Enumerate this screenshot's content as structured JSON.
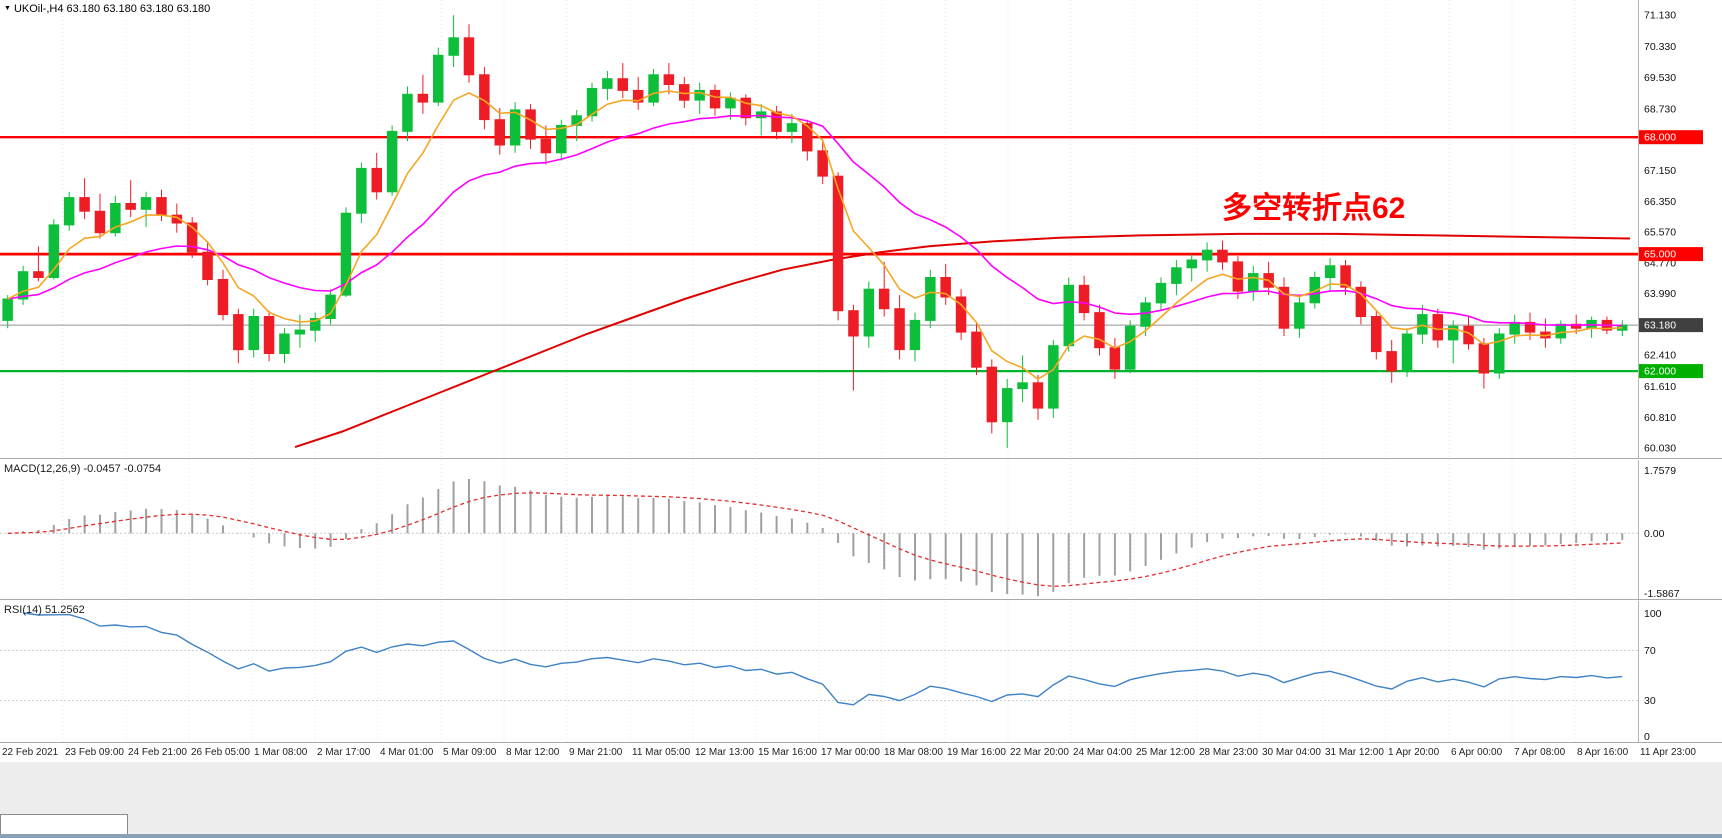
{
  "header": {
    "triangle": "▼",
    "title": "UKOil-,H4 63.180 63.180 63.180 63.180"
  },
  "annotation": {
    "text": "多空转折点62",
    "color": "#ff0000"
  },
  "colors": {
    "up": "#0cbe3a",
    "down": "#ee1c25",
    "ma_fast": "#f5a623",
    "ma_mid": "#ff00ff",
    "ma_slow": "#e00000",
    "macd_bar": "#a0a0a0",
    "macd_signal": "#e03030",
    "rsi_line": "#3e83c6",
    "grid": "#e8e8e8",
    "axis_border": "#b5b5b5",
    "current_line": "#909090"
  },
  "price_axis": {
    "labels": [
      {
        "value": "71.130",
        "price": 71.13
      },
      {
        "value": "70.330",
        "price": 70.33
      },
      {
        "value": "69.530",
        "price": 69.53
      },
      {
        "value": "68.730",
        "price": 68.73
      },
      {
        "value": "67.150",
        "price": 67.15
      },
      {
        "value": "66.350",
        "price": 66.35
      },
      {
        "value": "65.570",
        "price": 65.57
      },
      {
        "value": "64.770",
        "price": 64.77
      },
      {
        "value": "63.990",
        "price": 63.99
      },
      {
        "value": "62.410",
        "price": 62.41
      },
      {
        "value": "61.610",
        "price": 61.61
      },
      {
        "value": "60.810",
        "price": 60.81
      },
      {
        "value": "60.030",
        "price": 60.03
      }
    ],
    "badges": [
      {
        "value": "68.000",
        "price": 68.0,
        "bg": "#ff0000"
      },
      {
        "value": "65.000",
        "price": 65.0,
        "bg": "#ff0000"
      },
      {
        "value": "63.180",
        "price": 63.18,
        "bg": "#404040"
      },
      {
        "value": "62.000",
        "price": 62.0,
        "bg": "#00b000"
      }
    ]
  },
  "hlines": [
    {
      "name": "resistance-68",
      "price": 68.0,
      "color": "#ff0000",
      "width": 2.4
    },
    {
      "name": "pivot-65",
      "price": 65.0,
      "color": "#ff0000",
      "width": 2.8
    },
    {
      "name": "support-62",
      "price": 62.0,
      "color": "#00b52d",
      "width": 2.2
    },
    {
      "name": "current-price",
      "price": 63.18,
      "color": "#909090",
      "width": 1
    }
  ],
  "time_axis": [
    "22 Feb 2021",
    "23 Feb 09:00",
    "24 Feb 21:00",
    "26 Feb 05:00",
    "1 Mar 08:00",
    "2 Mar 17:00",
    "4 Mar 01:00",
    "5 Mar 09:00",
    "8 Mar 12:00",
    "9 Mar 21:00",
    "11 Mar 05:00",
    "12 Mar 13:00",
    "15 Mar 16:00",
    "17 Mar 00:00",
    "18 Mar 08:00",
    "19 Mar 16:00",
    "22 Mar 20:00",
    "24 Mar 04:00",
    "25 Mar 12:00",
    "28 Mar 23:00",
    "30 Mar 04:00",
    "31 Mar 12:00",
    "1 Apr 20:00",
    "6 Apr 00:00",
    "7 Apr 08:00",
    "8 Apr 16:00",
    "11 Apr 23:00"
  ],
  "chart_data": {
    "type": "candlestick",
    "symbol": "UKOil-",
    "timeframe": "H4",
    "current_price": 63.18,
    "price_range": {
      "max": 71.52,
      "min": 59.77
    },
    "ma_fast_period": 6,
    "ma_mid_period": 20,
    "red_ma_path": [
      [
        0.181,
        60.05
      ],
      [
        0.21,
        60.45
      ],
      [
        0.24,
        60.95
      ],
      [
        0.27,
        61.45
      ],
      [
        0.3,
        61.95
      ],
      [
        0.33,
        62.45
      ],
      [
        0.36,
        62.95
      ],
      [
        0.39,
        63.4
      ],
      [
        0.42,
        63.85
      ],
      [
        0.45,
        64.25
      ],
      [
        0.48,
        64.6
      ],
      [
        0.51,
        64.85
      ],
      [
        0.54,
        65.05
      ],
      [
        0.57,
        65.2
      ],
      [
        0.61,
        65.33
      ],
      [
        0.65,
        65.42
      ],
      [
        0.7,
        65.48
      ],
      [
        0.76,
        65.52
      ],
      [
        0.82,
        65.52
      ],
      [
        0.88,
        65.48
      ],
      [
        0.94,
        65.44
      ],
      [
        1.0,
        65.4
      ]
    ],
    "ohlc": [
      [
        63.3,
        63.95,
        63.1,
        63.85
      ],
      [
        63.85,
        64.7,
        63.7,
        64.55
      ],
      [
        64.55,
        65.2,
        64.3,
        64.4
      ],
      [
        64.4,
        65.9,
        64.35,
        65.75
      ],
      [
        65.75,
        66.6,
        65.6,
        66.45
      ],
      [
        66.45,
        66.95,
        65.9,
        66.1
      ],
      [
        66.1,
        66.55,
        65.4,
        65.55
      ],
      [
        65.55,
        66.5,
        65.45,
        66.3
      ],
      [
        66.3,
        66.9,
        65.95,
        66.15
      ],
      [
        66.15,
        66.6,
        65.7,
        66.45
      ],
      [
        66.45,
        66.65,
        65.85,
        66.0
      ],
      [
        66.0,
        66.3,
        65.55,
        65.8
      ],
      [
        65.8,
        65.95,
        64.9,
        65.05
      ],
      [
        65.05,
        65.3,
        64.2,
        64.35
      ],
      [
        64.35,
        64.6,
        63.3,
        63.45
      ],
      [
        63.45,
        63.6,
        62.2,
        62.55
      ],
      [
        62.55,
        63.6,
        62.35,
        63.4
      ],
      [
        63.4,
        63.55,
        62.25,
        62.45
      ],
      [
        62.45,
        63.1,
        62.2,
        62.95
      ],
      [
        62.95,
        63.45,
        62.6,
        63.05
      ],
      [
        63.05,
        63.5,
        62.75,
        63.35
      ],
      [
        63.35,
        64.1,
        63.2,
        63.95
      ],
      [
        63.95,
        66.2,
        63.9,
        66.05
      ],
      [
        66.05,
        67.35,
        65.8,
        67.2
      ],
      [
        67.2,
        67.6,
        66.4,
        66.6
      ],
      [
        66.6,
        68.3,
        66.5,
        68.15
      ],
      [
        68.15,
        69.3,
        67.9,
        69.1
      ],
      [
        69.1,
        69.6,
        68.6,
        68.9
      ],
      [
        68.9,
        70.3,
        68.8,
        70.1
      ],
      [
        70.1,
        71.13,
        69.8,
        70.55
      ],
      [
        70.55,
        70.9,
        69.4,
        69.6
      ],
      [
        69.6,
        69.8,
        68.2,
        68.45
      ],
      [
        68.45,
        68.75,
        67.55,
        67.8
      ],
      [
        67.8,
        68.9,
        67.6,
        68.7
      ],
      [
        68.7,
        68.85,
        67.7,
        67.95
      ],
      [
        67.95,
        68.3,
        67.3,
        67.6
      ],
      [
        67.6,
        68.45,
        67.4,
        68.3
      ],
      [
        68.3,
        68.7,
        67.9,
        68.55
      ],
      [
        68.55,
        69.4,
        68.4,
        69.25
      ],
      [
        69.25,
        69.7,
        68.95,
        69.5
      ],
      [
        69.5,
        69.9,
        69.0,
        69.2
      ],
      [
        69.2,
        69.55,
        68.7,
        68.9
      ],
      [
        68.9,
        69.75,
        68.8,
        69.6
      ],
      [
        69.6,
        69.9,
        69.1,
        69.35
      ],
      [
        69.35,
        69.55,
        68.75,
        68.95
      ],
      [
        68.95,
        69.4,
        68.6,
        69.2
      ],
      [
        69.2,
        69.35,
        68.55,
        68.75
      ],
      [
        68.75,
        69.15,
        68.45,
        69.0
      ],
      [
        69.0,
        69.1,
        68.3,
        68.5
      ],
      [
        68.5,
        68.85,
        68.05,
        68.65
      ],
      [
        68.65,
        68.8,
        67.95,
        68.15
      ],
      [
        68.15,
        68.6,
        67.85,
        68.35
      ],
      [
        68.35,
        68.45,
        67.4,
        67.65
      ],
      [
        67.65,
        67.9,
        66.8,
        67.0
      ],
      [
        67.0,
        67.1,
        63.3,
        63.55
      ],
      [
        63.55,
        63.7,
        61.5,
        62.9
      ],
      [
        62.9,
        64.3,
        62.6,
        64.1
      ],
      [
        64.1,
        64.8,
        63.4,
        63.6
      ],
      [
        63.6,
        63.95,
        62.3,
        62.55
      ],
      [
        62.55,
        63.5,
        62.25,
        63.3
      ],
      [
        63.3,
        64.6,
        63.1,
        64.4
      ],
      [
        64.4,
        64.75,
        63.7,
        63.9
      ],
      [
        63.9,
        64.1,
        62.8,
        63.0
      ],
      [
        63.0,
        63.25,
        61.9,
        62.1
      ],
      [
        62.1,
        62.3,
        60.4,
        60.7
      ],
      [
        60.7,
        61.8,
        60.03,
        61.55
      ],
      [
        61.55,
        62.4,
        61.2,
        61.7
      ],
      [
        61.7,
        61.9,
        60.75,
        61.05
      ],
      [
        61.05,
        62.8,
        60.8,
        62.65
      ],
      [
        62.65,
        64.4,
        62.5,
        64.2
      ],
      [
        64.2,
        64.45,
        63.3,
        63.5
      ],
      [
        63.5,
        63.7,
        62.4,
        62.6
      ],
      [
        62.6,
        62.85,
        61.8,
        62.05
      ],
      [
        62.05,
        63.3,
        61.95,
        63.15
      ],
      [
        63.15,
        63.9,
        62.9,
        63.75
      ],
      [
        63.75,
        64.4,
        63.55,
        64.25
      ],
      [
        64.25,
        64.85,
        63.95,
        64.65
      ],
      [
        64.65,
        65.0,
        64.3,
        64.85
      ],
      [
        64.85,
        65.3,
        64.55,
        65.1
      ],
      [
        65.1,
        65.35,
        64.6,
        64.8
      ],
      [
        64.8,
        64.95,
        63.85,
        64.05
      ],
      [
        64.05,
        64.7,
        63.8,
        64.5
      ],
      [
        64.5,
        64.8,
        63.95,
        64.15
      ],
      [
        64.15,
        64.4,
        62.9,
        63.1
      ],
      [
        63.1,
        63.9,
        62.85,
        63.75
      ],
      [
        63.75,
        64.55,
        63.6,
        64.4
      ],
      [
        64.4,
        64.9,
        64.05,
        64.7
      ],
      [
        64.7,
        64.85,
        63.95,
        64.15
      ],
      [
        64.15,
        64.3,
        63.2,
        63.4
      ],
      [
        63.4,
        63.55,
        62.3,
        62.5
      ],
      [
        62.5,
        62.8,
        61.7,
        62.0
      ],
      [
        62.0,
        63.1,
        61.85,
        62.95
      ],
      [
        62.95,
        63.7,
        62.7,
        63.45
      ],
      [
        63.45,
        63.6,
        62.6,
        62.8
      ],
      [
        62.8,
        63.3,
        62.2,
        63.15
      ],
      [
        63.15,
        63.4,
        62.55,
        62.7
      ],
      [
        62.7,
        62.85,
        61.55,
        61.95
      ],
      [
        61.95,
        63.1,
        61.8,
        62.95
      ],
      [
        62.95,
        63.45,
        62.7,
        63.25
      ],
      [
        63.25,
        63.5,
        62.8,
        63.0
      ],
      [
        63.0,
        63.35,
        62.6,
        62.85
      ],
      [
        62.85,
        63.3,
        62.7,
        63.2
      ],
      [
        63.2,
        63.45,
        62.95,
        63.1
      ],
      [
        63.1,
        63.4,
        62.85,
        63.3
      ],
      [
        63.3,
        63.4,
        62.95,
        63.05
      ],
      [
        63.05,
        63.3,
        62.9,
        63.18
      ]
    ],
    "macd": {
      "label": "MACD(12,26,9) -0.0457 -0.0754",
      "params": [
        12,
        26,
        9
      ],
      "values_shown": [
        -0.0457,
        -0.0754
      ],
      "axis": [
        "1.7579",
        "0.00",
        "-1.5867"
      ],
      "range": {
        "max": 1.7579,
        "min": -1.5867
      }
    },
    "rsi": {
      "label": "RSI(14) 51.2562",
      "period": 14,
      "value_shown": 51.2562,
      "levels": [
        70,
        30
      ],
      "axis": [
        "100",
        "70",
        "30",
        "0"
      ]
    }
  }
}
